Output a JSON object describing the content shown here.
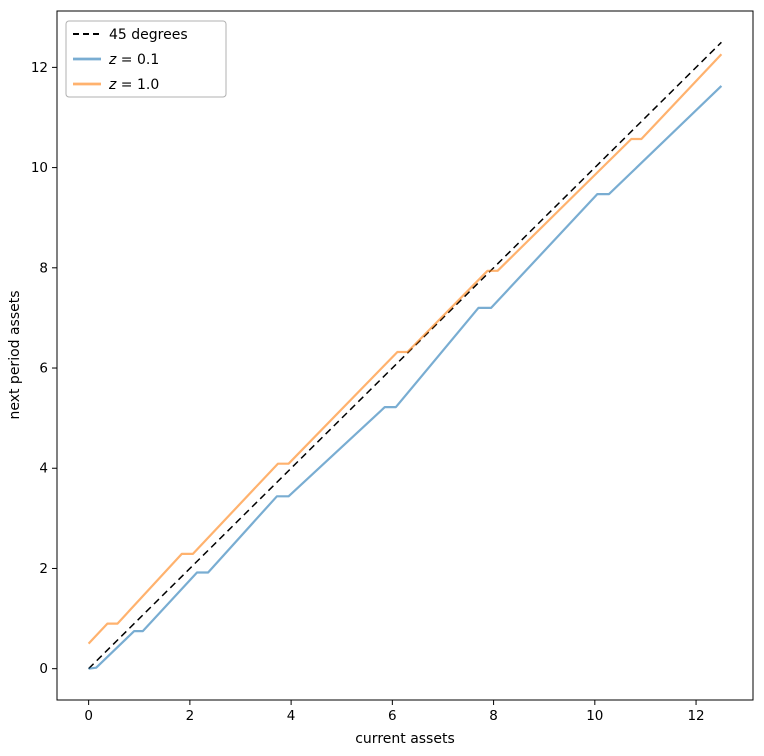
{
  "figure": {
    "background": "#ffffff",
    "spine_color": "#000000"
  },
  "chart_data": {
    "type": "line",
    "title": "",
    "xlabel": "current assets",
    "ylabel": "next period assets",
    "xlim": [
      -0.625,
      13.125
    ],
    "ylim": [
      -0.625,
      13.125
    ],
    "xticks": [
      0,
      2,
      4,
      6,
      8,
      10,
      12
    ],
    "yticks": [
      0,
      2,
      4,
      6,
      8,
      10,
      12
    ],
    "grid": false,
    "legend_position": "upper-left",
    "series": [
      {
        "name": "45 degrees",
        "math_label": false,
        "color": "#000000",
        "opacity": 1.0,
        "style": "dashed",
        "width": 1.5,
        "points": [
          [
            0,
            0
          ],
          [
            12.5,
            12.5
          ]
        ]
      },
      {
        "name": "z = 0.1",
        "math_label": true,
        "math_var": "z",
        "math_rest": " = 0.1",
        "color": "#1f77b4",
        "opacity": 0.6,
        "style": "solid",
        "width": 2.2,
        "points": [
          [
            0,
            0
          ],
          [
            0.15,
            0.02
          ],
          [
            0.9,
            0.75
          ],
          [
            1.07,
            0.75
          ],
          [
            2.14,
            1.92
          ],
          [
            2.36,
            1.92
          ],
          [
            3.72,
            3.44
          ],
          [
            3.95,
            3.44
          ],
          [
            5.85,
            5.22
          ],
          [
            6.07,
            5.22
          ],
          [
            7.7,
            7.2
          ],
          [
            7.95,
            7.2
          ],
          [
            10.05,
            9.47
          ],
          [
            10.28,
            9.47
          ],
          [
            12.5,
            11.63
          ]
        ]
      },
      {
        "name": "z = 1.0",
        "math_label": true,
        "math_var": "z",
        "math_rest": " = 1.0",
        "color": "#ff7f0e",
        "opacity": 0.6,
        "style": "solid",
        "width": 2.2,
        "points": [
          [
            0,
            0.5
          ],
          [
            0.37,
            0.9
          ],
          [
            0.57,
            0.9
          ],
          [
            1.84,
            2.29
          ],
          [
            2.06,
            2.29
          ],
          [
            3.74,
            4.09
          ],
          [
            3.95,
            4.09
          ],
          [
            6.1,
            6.32
          ],
          [
            6.3,
            6.32
          ],
          [
            7.88,
            7.94
          ],
          [
            8.08,
            7.94
          ],
          [
            10.72,
            10.57
          ],
          [
            10.92,
            10.57
          ],
          [
            12.5,
            12.26
          ]
        ]
      }
    ]
  }
}
